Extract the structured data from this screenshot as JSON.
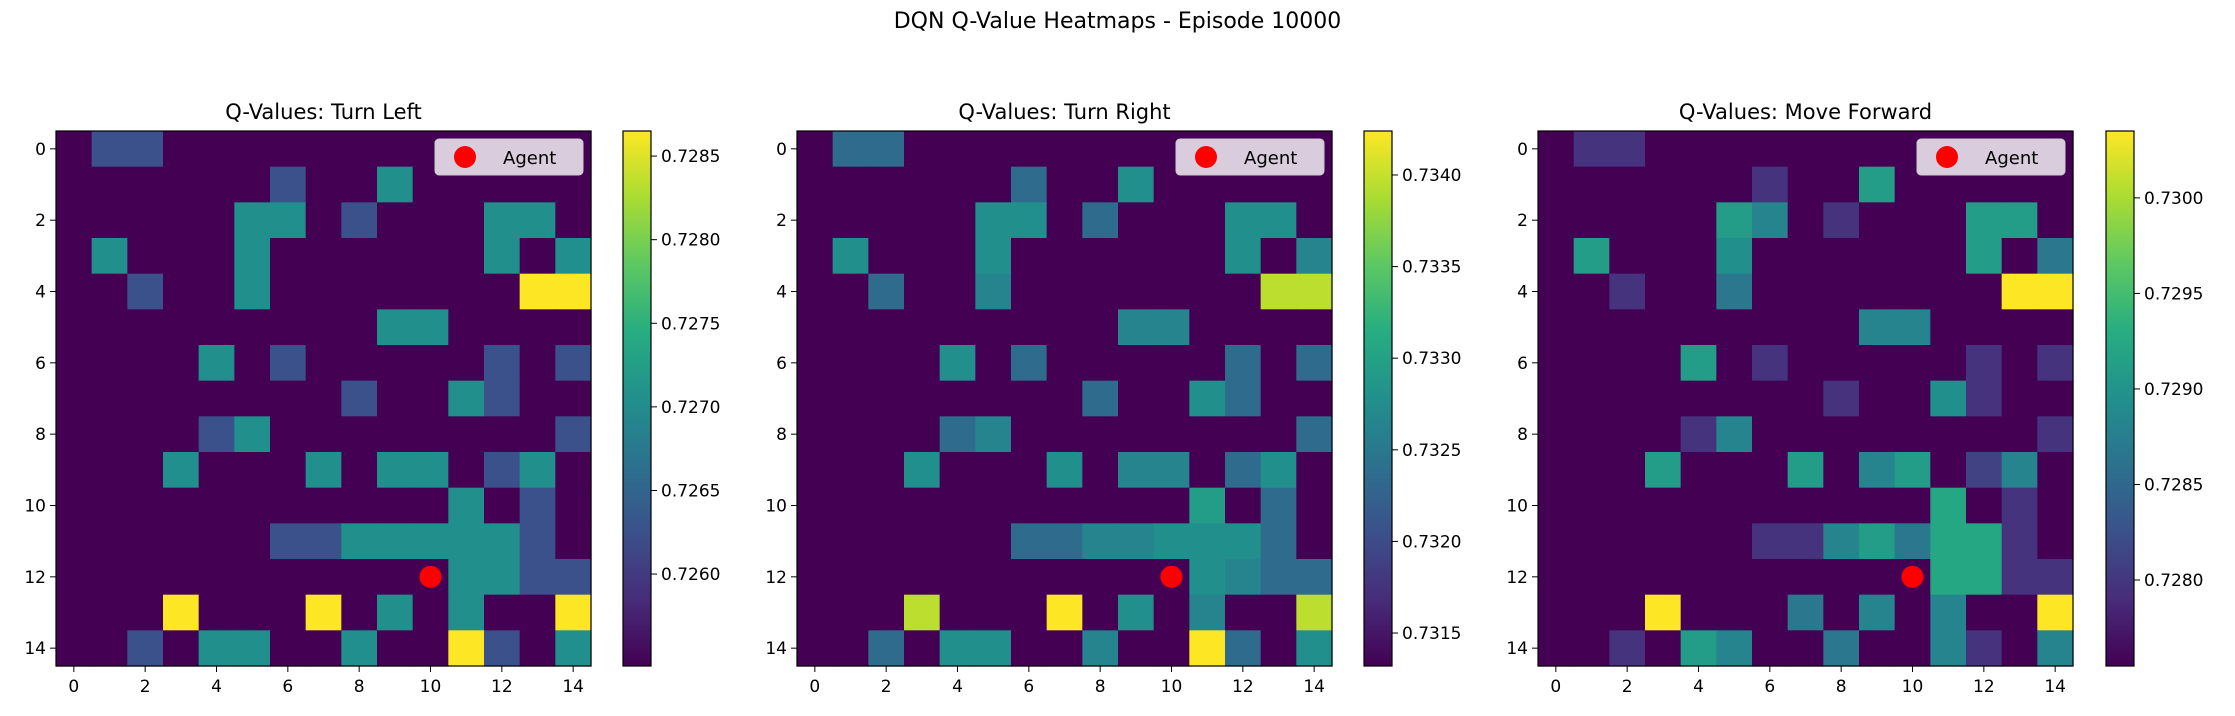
{
  "figure": {
    "suptitle": "DQN Q-Value Heatmaps - Episode 10000"
  },
  "chart_data": [
    {
      "type": "heatmap",
      "title": "Q-Values: Turn Left",
      "xlabel": "",
      "ylabel": "",
      "x_ticks": [
        0,
        2,
        4,
        6,
        8,
        10,
        12,
        14
      ],
      "y_ticks": [
        0,
        2,
        4,
        6,
        8,
        10,
        12,
        14
      ],
      "grid_size": 15,
      "colormap": "viridis",
      "colorbar": {
        "min": 0.72545,
        "max": 0.72865,
        "ticks": [
          "0.7260",
          "0.7265",
          "0.7270",
          "0.7275",
          "0.7280",
          "0.7285"
        ]
      },
      "agent": {
        "x": 10,
        "y": 12,
        "color": "#ff0000"
      },
      "legend": {
        "entries": [
          "Agent"
        ],
        "position": "upper right"
      },
      "levels": [
        [
          0,
          0.25,
          0.25,
          0,
          0,
          0,
          0,
          0,
          0,
          0,
          0,
          0,
          0,
          0,
          0
        ],
        [
          0,
          0,
          0,
          0,
          0,
          0,
          0.25,
          0,
          0,
          0.5,
          0,
          0,
          0,
          0,
          0
        ],
        [
          0,
          0,
          0,
          0,
          0,
          0.5,
          0.5,
          0,
          0.25,
          0,
          0,
          0,
          0.5,
          0.5,
          0
        ],
        [
          0,
          0.5,
          0,
          0,
          0,
          0.5,
          0,
          0,
          0,
          0,
          0,
          0,
          0.5,
          0,
          0.5
        ],
        [
          0,
          0,
          0.25,
          0,
          0,
          0.5,
          0,
          0,
          0,
          0,
          0,
          0,
          0,
          1,
          1
        ],
        [
          0,
          0,
          0,
          0,
          0,
          0,
          0,
          0,
          0,
          0.5,
          0.5,
          0,
          0,
          0,
          0
        ],
        [
          0,
          0,
          0,
          0,
          0.5,
          0,
          0.25,
          0,
          0,
          0,
          0,
          0,
          0.25,
          0,
          0.25
        ],
        [
          0,
          0,
          0,
          0,
          0,
          0,
          0,
          0,
          0.25,
          0,
          0,
          0.5,
          0.25,
          0,
          0
        ],
        [
          0,
          0,
          0,
          0,
          0.25,
          0.5,
          0,
          0,
          0,
          0,
          0,
          0,
          0,
          0,
          0.25
        ],
        [
          0,
          0,
          0,
          0.5,
          0,
          0,
          0,
          0.5,
          0,
          0.5,
          0.5,
          0,
          0.25,
          0.5,
          0
        ],
        [
          0,
          0,
          0,
          0,
          0,
          0,
          0,
          0,
          0,
          0,
          0,
          0.5,
          0,
          0.25,
          0
        ],
        [
          0,
          0,
          0,
          0,
          0,
          0,
          0.25,
          0.25,
          0.5,
          0.5,
          0.5,
          0.5,
          0.5,
          0.25,
          0
        ],
        [
          0,
          0,
          0,
          0,
          0,
          0,
          0,
          0,
          0,
          0,
          0,
          0.5,
          0.5,
          0.25,
          0.25
        ],
        [
          0,
          0,
          0,
          1,
          0,
          0,
          0,
          1,
          0,
          0.5,
          0,
          0.5,
          0,
          0,
          1
        ],
        [
          0,
          0,
          0.25,
          0,
          0.5,
          0.5,
          0,
          0,
          0.5,
          0,
          0,
          1,
          0.25,
          0,
          0.5
        ]
      ]
    },
    {
      "type": "heatmap",
      "title": "Q-Values: Turn Right",
      "xlabel": "",
      "ylabel": "",
      "x_ticks": [
        0,
        2,
        4,
        6,
        8,
        10,
        12,
        14
      ],
      "y_ticks": [
        0,
        2,
        4,
        6,
        8,
        10,
        12,
        14
      ],
      "grid_size": 15,
      "colormap": "viridis",
      "colorbar": {
        "min": 0.73132,
        "max": 0.73424,
        "ticks": [
          "0.7315",
          "0.7320",
          "0.7325",
          "0.7330",
          "0.7335",
          "0.7340"
        ]
      },
      "agent": {
        "x": 10,
        "y": 12,
        "color": "#ff0000"
      },
      "legend": {
        "entries": [
          "Agent"
        ],
        "position": "upper right"
      },
      "levels": [
        [
          0,
          0.35,
          0.35,
          0,
          0,
          0,
          0,
          0,
          0,
          0,
          0,
          0,
          0,
          0,
          0
        ],
        [
          0,
          0,
          0,
          0,
          0,
          0,
          0.35,
          0,
          0,
          0.5,
          0,
          0,
          0,
          0,
          0
        ],
        [
          0,
          0,
          0,
          0,
          0,
          0.5,
          0.5,
          0,
          0.35,
          0,
          0,
          0,
          0.5,
          0.5,
          0
        ],
        [
          0,
          0.5,
          0,
          0,
          0,
          0.5,
          0,
          0,
          0,
          0,
          0,
          0,
          0.5,
          0,
          0.45
        ],
        [
          0,
          0,
          0.35,
          0,
          0,
          0.45,
          0,
          0,
          0,
          0,
          0,
          0,
          0,
          0.9,
          0.9
        ],
        [
          0,
          0,
          0,
          0,
          0,
          0,
          0,
          0,
          0,
          0.45,
          0.45,
          0,
          0,
          0,
          0
        ],
        [
          0,
          0,
          0,
          0,
          0.5,
          0,
          0.35,
          0,
          0,
          0,
          0,
          0,
          0.35,
          0,
          0.35
        ],
        [
          0,
          0,
          0,
          0,
          0,
          0,
          0,
          0,
          0.35,
          0,
          0,
          0.5,
          0.35,
          0,
          0
        ],
        [
          0,
          0,
          0,
          0,
          0.35,
          0.45,
          0,
          0,
          0,
          0,
          0,
          0,
          0,
          0,
          0.35
        ],
        [
          0,
          0,
          0,
          0.5,
          0,
          0,
          0,
          0.5,
          0,
          0.45,
          0.45,
          0,
          0.35,
          0.5,
          0
        ],
        [
          0,
          0,
          0,
          0,
          0,
          0,
          0,
          0,
          0,
          0,
          0,
          0.55,
          0,
          0.35,
          0
        ],
        [
          0,
          0,
          0,
          0,
          0,
          0,
          0.35,
          0.35,
          0.45,
          0.45,
          0.5,
          0.5,
          0.5,
          0.35,
          0
        ],
        [
          0,
          0,
          0,
          0,
          0,
          0,
          0,
          0,
          0,
          0,
          0,
          0.5,
          0.45,
          0.35,
          0.35
        ],
        [
          0,
          0,
          0,
          0.9,
          0,
          0,
          0,
          1,
          0,
          0.5,
          0,
          0.45,
          0,
          0,
          0.9
        ],
        [
          0,
          0,
          0.35,
          0,
          0.5,
          0.5,
          0,
          0,
          0.45,
          0,
          0,
          1,
          0.35,
          0,
          0.5
        ]
      ]
    },
    {
      "type": "heatmap",
      "title": "Q-Values: Move Forward",
      "xlabel": "",
      "ylabel": "",
      "x_ticks": [
        0,
        2,
        4,
        6,
        8,
        10,
        12,
        14
      ],
      "y_ticks": [
        0,
        2,
        4,
        6,
        8,
        10,
        12,
        14
      ],
      "grid_size": 15,
      "colormap": "viridis",
      "colorbar": {
        "min": 0.72755,
        "max": 0.73035,
        "ticks": [
          "0.7280",
          "0.7285",
          "0.7290",
          "0.7295",
          "0.7300"
        ]
      },
      "agent": {
        "x": 10,
        "y": 12,
        "color": "#ff0000"
      },
      "legend": {
        "entries": [
          "Agent"
        ],
        "position": "upper right"
      },
      "levels": [
        [
          0,
          0.15,
          0.15,
          0,
          0,
          0,
          0,
          0,
          0,
          0,
          0,
          0,
          0,
          0,
          0
        ],
        [
          0,
          0,
          0,
          0,
          0,
          0,
          0.15,
          0,
          0,
          0.55,
          0,
          0,
          0,
          0,
          0
        ],
        [
          0,
          0,
          0,
          0,
          0,
          0.55,
          0.45,
          0,
          0.15,
          0,
          0,
          0,
          0.55,
          0.55,
          0
        ],
        [
          0,
          0.55,
          0,
          0,
          0,
          0.5,
          0,
          0,
          0,
          0,
          0,
          0,
          0.55,
          0,
          0.4
        ],
        [
          0,
          0,
          0.15,
          0,
          0,
          0.4,
          0,
          0,
          0,
          0,
          0,
          0,
          0,
          1,
          1
        ],
        [
          0,
          0,
          0,
          0,
          0,
          0,
          0,
          0,
          0,
          0.45,
          0.45,
          0,
          0,
          0,
          0
        ],
        [
          0,
          0,
          0,
          0,
          0.55,
          0,
          0.15,
          0,
          0,
          0,
          0,
          0,
          0.15,
          0,
          0.15
        ],
        [
          0,
          0,
          0,
          0,
          0,
          0,
          0,
          0,
          0.15,
          0,
          0,
          0.5,
          0.15,
          0,
          0
        ],
        [
          0,
          0,
          0,
          0,
          0.15,
          0.45,
          0,
          0,
          0,
          0,
          0,
          0,
          0,
          0,
          0.15
        ],
        [
          0,
          0,
          0,
          0.55,
          0,
          0,
          0,
          0.55,
          0,
          0.45,
          0.55,
          0,
          0.2,
          0.45,
          0
        ],
        [
          0,
          0,
          0,
          0,
          0,
          0,
          0,
          0,
          0,
          0,
          0,
          0.6,
          0,
          0.15,
          0
        ],
        [
          0,
          0,
          0,
          0,
          0,
          0,
          0.15,
          0.15,
          0.45,
          0.55,
          0.4,
          0.6,
          0.6,
          0.15,
          0
        ],
        [
          0,
          0,
          0,
          0,
          0,
          0,
          0,
          0,
          0,
          0,
          0,
          0.6,
          0.6,
          0.15,
          0.15
        ],
        [
          0,
          0,
          0,
          1,
          0,
          0,
          0,
          0.4,
          0,
          0.45,
          0,
          0.45,
          0,
          0,
          1
        ],
        [
          0,
          0,
          0.15,
          0,
          0.55,
          0.45,
          0,
          0,
          0.4,
          0,
          0,
          0.45,
          0.15,
          0,
          0.45
        ]
      ]
    }
  ]
}
